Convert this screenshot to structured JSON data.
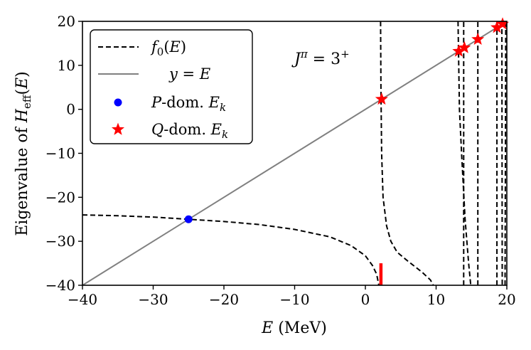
{
  "chart_data": {
    "type": "line",
    "xlabel": "E (MeV)",
    "ylabel": "Eigenvalue of H_eff(E)",
    "xlim": [
      -40,
      20
    ],
    "ylim": [
      -40,
      20
    ],
    "xticks": [
      -40,
      -30,
      -20,
      -10,
      0,
      10,
      20
    ],
    "yticks": [
      -40,
      -30,
      -20,
      -10,
      0,
      10,
      20
    ],
    "xtick_labels": [
      "−40",
      "−30",
      "−20",
      "−10",
      "0",
      "10",
      "20"
    ],
    "ytick_labels": [
      "−40",
      "−30",
      "−20",
      "−10",
      "0",
      "10",
      "20"
    ],
    "annotation": "J^π = 3^+",
    "legend": {
      "position": "top-left",
      "entries": [
        "f0(E)",
        "y = E",
        "P-dom. E_k",
        "Q-dom. E_k"
      ]
    },
    "colors": {
      "f0": "#000000",
      "identity": "#808080",
      "p_dom": "#0000ff",
      "q_dom": "#ff0000"
    },
    "series": [
      {
        "name": "f0(E)",
        "style": "dashed",
        "branches": [
          [
            [
              -40,
              -24.0
            ],
            [
              -35,
              -24.2
            ],
            [
              -30,
              -24.5
            ],
            [
              -25,
              -25.0
            ],
            [
              -20,
              -25.5
            ],
            [
              -15,
              -26.2
            ],
            [
              -10,
              -27.3
            ],
            [
              -5,
              -29.0
            ],
            [
              -2,
              -31.0
            ],
            [
              0,
              -33.3
            ],
            [
              1,
              -35.5
            ],
            [
              1.6,
              -37.5
            ],
            [
              1.9,
              -40
            ]
          ],
          [
            [
              2.15,
              20
            ],
            [
              2.2,
              5
            ],
            [
              2.3,
              -10
            ],
            [
              2.5,
              -20
            ],
            [
              3.0,
              -26.5
            ],
            [
              3.6,
              -30
            ],
            [
              4.5,
              -32.5
            ],
            [
              6,
              -34.5
            ],
            [
              8,
              -37
            ],
            [
              9.2,
              -38.8
            ],
            [
              9.6,
              -40
            ]
          ],
          [
            [
              13.1,
              20
            ],
            [
              13.3,
              0
            ],
            [
              13.6,
              -10
            ],
            [
              14.1,
              -25
            ],
            [
              14.6,
              -35
            ],
            [
              14.9,
              -40
            ]
          ],
          [
            [
              13.9,
              -40
            ],
            [
              13.9,
              20
            ]
          ],
          [
            [
              15.9,
              -40
            ],
            [
              15.9,
              20
            ]
          ],
          [
            [
              18.6,
              -40
            ],
            [
              18.6,
              20
            ]
          ],
          [
            [
              19.3,
              20
            ],
            [
              19.35,
              -40
            ]
          ],
          [
            [
              19.75,
              -40
            ],
            [
              19.85,
              20
            ]
          ]
        ]
      },
      {
        "name": "y = E",
        "style": "solid",
        "points": [
          [
            -40,
            -40
          ],
          [
            20,
            20
          ]
        ]
      },
      {
        "name": "P-dom. E_k",
        "marker": "circle",
        "points": [
          [
            -25,
            -25
          ]
        ]
      },
      {
        "name": "Q-dom. E_k",
        "marker": "star",
        "points": [
          [
            2.3,
            2.3
          ],
          [
            13.2,
            13.2
          ],
          [
            14.0,
            14.0
          ],
          [
            15.9,
            15.9
          ],
          [
            18.6,
            18.6
          ],
          [
            19.4,
            19.4
          ]
        ]
      }
    ],
    "rug_marker": {
      "color": "#ff0000",
      "x": 2.2,
      "y_range": [
        -40,
        -35
      ]
    }
  }
}
